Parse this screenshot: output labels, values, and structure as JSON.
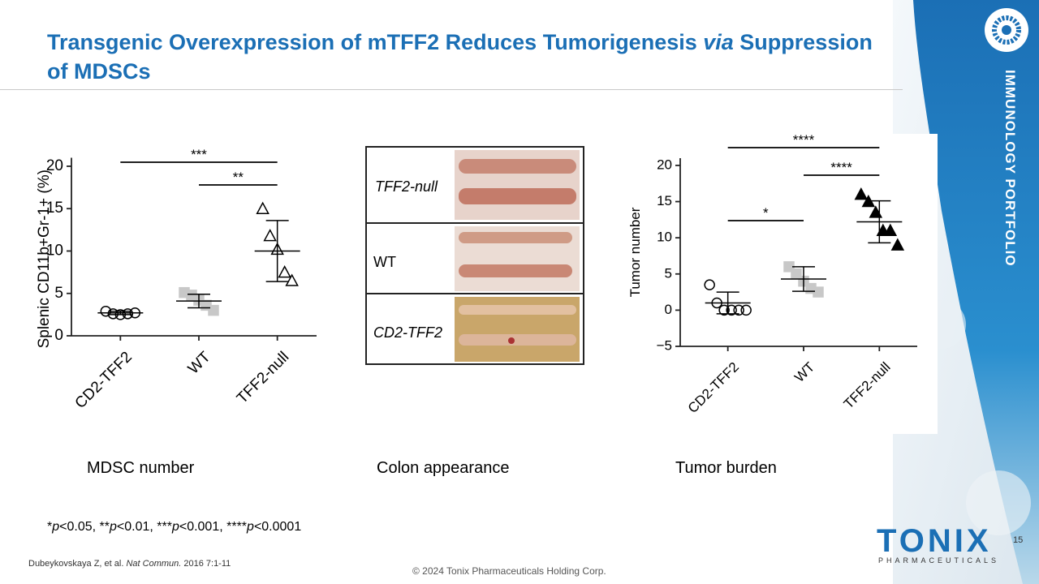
{
  "title": [
    "Transgenic Overexpression of mTFF2 Reduces Tumorigenesis ",
    "via",
    " Suppression of MDSCs"
  ],
  "side_label": "IMMUNOLOGY PORTFOLIO",
  "panel": {
    "rows": [
      "TFF2-null",
      "WT",
      "CD2-TFF2"
    ]
  },
  "captions": [
    "MDSC number",
    "Colon appearance",
    "Tumor burden"
  ],
  "footnote": [
    "*",
    "p",
    "<0.05, **",
    "p",
    "<0.01, ***",
    "p",
    "<0.001, ****",
    "p",
    "<0.0001"
  ],
  "citation": [
    "Dubeykovskaya Z, et al. ",
    "Nat Commun.",
    " 2016 7:1-11"
  ],
  "copyright": "© 2024 Tonix Pharmaceuticals Holding Corp.",
  "page_number": "15",
  "logo": {
    "name": "TONIX",
    "sub": "PHARMACEUTICALS"
  },
  "chart_data": [
    {
      "type": "dot",
      "y_label": "Splenic CD11b+Gr-1+ (%)",
      "categories": [
        "CD2-TFF2",
        "WT",
        "TFF2-null"
      ],
      "points": [
        [
          2.9,
          2.6,
          2.5,
          2.6,
          2.7
        ],
        [
          5.1,
          4.8,
          4.2,
          3.6,
          3.0
        ],
        [
          15.0,
          11.8,
          10.2,
          7.5,
          6.5
        ]
      ],
      "means": [
        2.7,
        4.1,
        10.0
      ],
      "sd": [
        0.2,
        0.8,
        3.6
      ],
      "marker_shapes": [
        "circle",
        "square",
        "triangle"
      ],
      "marker_fills": [
        "none",
        "#c8c8c8",
        "none"
      ],
      "ylim": [
        0,
        21
      ],
      "yticks": [
        0,
        5,
        10,
        15,
        20
      ],
      "brackets": [
        {
          "from": 0,
          "to": 2,
          "label": "***"
        },
        {
          "from": 1,
          "to": 2,
          "label": "**"
        }
      ]
    },
    {
      "type": "dot",
      "y_label": "Tumor number",
      "categories": [
        "CD2-TFF2",
        "WT",
        "TFF2-null"
      ],
      "points": [
        [
          3.5,
          1.0,
          0,
          0,
          0,
          0
        ],
        [
          6,
          5,
          4,
          3,
          2.5
        ],
        [
          16,
          15,
          13.5,
          11,
          11,
          9
        ]
      ],
      "means": [
        1.0,
        4.3,
        12.2
      ],
      "sd": [
        1.5,
        1.7,
        2.9
      ],
      "marker_shapes": [
        "circle",
        "square",
        "triangle"
      ],
      "marker_fills": [
        "none",
        "#c8c8c8",
        "#000000"
      ],
      "ylim": [
        -5,
        21
      ],
      "yticks": [
        {
          "value": -5,
          "label": "−5"
        },
        0,
        5,
        10,
        15,
        20
      ],
      "brackets": [
        {
          "from": 0,
          "to": 2,
          "label": "****"
        },
        {
          "from": 1,
          "to": 2,
          "label": "****"
        },
        {
          "from": 0,
          "to": 1,
          "label": "*"
        }
      ]
    }
  ]
}
